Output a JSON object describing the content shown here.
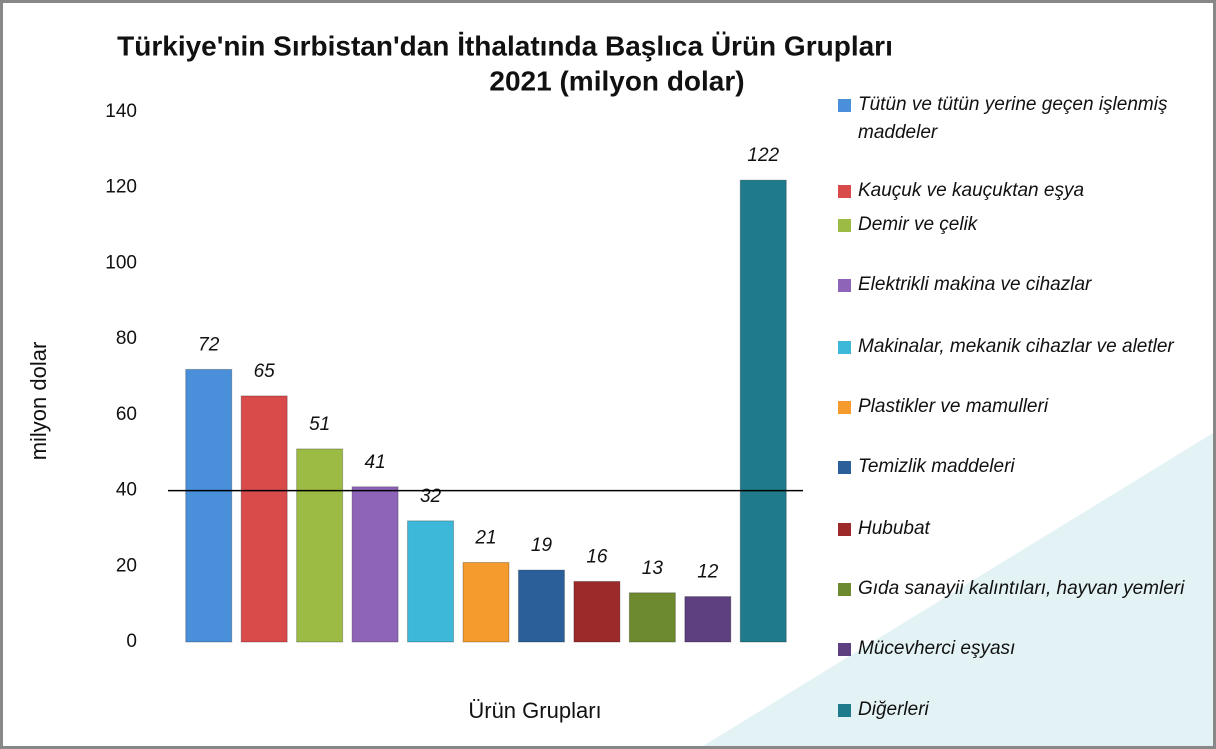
{
  "chart_data": {
    "type": "bar",
    "title": "Türkiye'nin Sırbistan'dan İthalatında Başlıca Ürün Grupları",
    "subtitle": "2021 (milyon dolar)",
    "x_label": "Ürün Grupları",
    "y_label": "milyon dolar",
    "categories": [
      "Tütün ve tütün yerine geçen işlenmiş maddeler",
      "Kauçuk ve kauçuktan eşya",
      "Demir ve çelik",
      "Elektrikli makina ve cihazlar",
      "Makinalar, mekanik cihazlar ve aletler",
      "Plastikler ve mamulleri",
      "Temizlik maddeleri",
      "Hububat",
      "Gıda sanayii kalıntıları, hayvan yemleri",
      "Mücevherci eşyası",
      "Diğerleri"
    ],
    "values": [
      72,
      65,
      51,
      41,
      32,
      21,
      19,
      16,
      13,
      12,
      122
    ],
    "colors": [
      "#4a8fd9",
      "#d94a4a",
      "#9bbb44",
      "#8e64b8",
      "#3db8d8",
      "#f59b2e",
      "#2a5f9a",
      "#9c2a2a",
      "#6e8a2e",
      "#5e3f80",
      "#1f7a8c"
    ],
    "ylim": [
      0,
      140
    ],
    "yticks": [
      0,
      20,
      40,
      60,
      80,
      100,
      120,
      140
    ],
    "reference_line": 40,
    "legend": "right"
  }
}
